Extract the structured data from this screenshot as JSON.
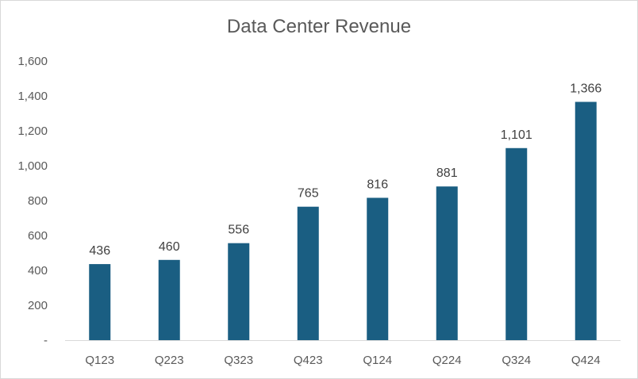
{
  "chart_data": {
    "type": "bar",
    "title": "Data Center Revenue",
    "xlabel": "",
    "ylabel": "",
    "categories": [
      "Q123",
      "Q223",
      "Q323",
      "Q423",
      "Q124",
      "Q224",
      "Q324",
      "Q424"
    ],
    "values": [
      436,
      460,
      556,
      765,
      816,
      881,
      1101,
      1366
    ],
    "value_labels": [
      "436",
      "460",
      "556",
      "765",
      "816",
      "881",
      "1,101",
      "1,366"
    ],
    "ylim": [
      0,
      1600
    ],
    "yticks": [
      0,
      200,
      400,
      600,
      800,
      1000,
      1200,
      1400,
      1600
    ],
    "ytick_labels": [
      "-",
      "200",
      "400",
      "600",
      "800",
      "1,000",
      "1,200",
      "1,400",
      "1,600"
    ],
    "grid": false,
    "legend": "none",
    "bar_color": "#1a5e82",
    "axis_color": "#d9d9d9"
  }
}
